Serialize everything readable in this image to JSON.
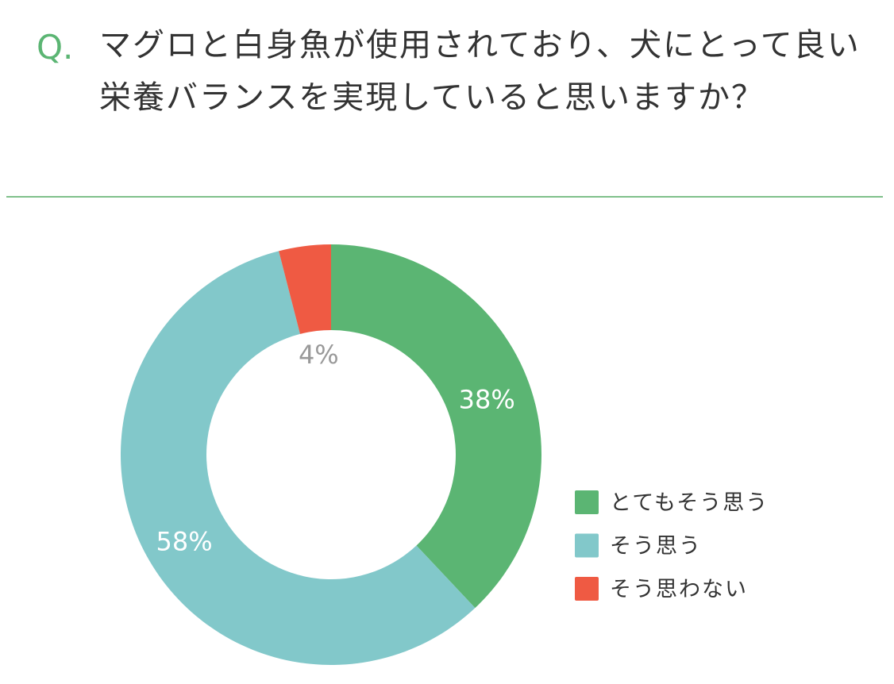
{
  "question_prefix": "Q.",
  "chart_data": {
    "type": "donut",
    "title": "マグロと白身魚が使用されており、犬にとって良い栄養バランスを実現していると思いますか？",
    "categories": [
      "とてもそう思う",
      "そう思う",
      "そう思わない"
    ],
    "values": [
      38,
      58,
      4
    ],
    "value_labels": [
      "38%",
      "58%",
      "4%"
    ],
    "colors": [
      "#5bb573",
      "#82c8ca",
      "#ef5a43"
    ],
    "legend": "right"
  }
}
